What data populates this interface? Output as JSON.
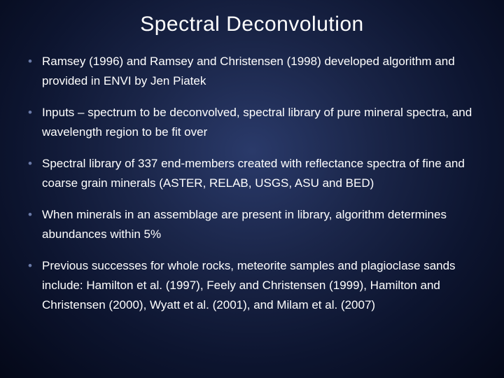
{
  "slide": {
    "title": "Spectral Deconvolution",
    "background": {
      "type": "radial-gradient",
      "center_color": "#2a3a6a",
      "mid_color": "#1a2548",
      "outer_color": "#0d1530",
      "edge_color": "#040818"
    },
    "title_style": {
      "fontsize": 30,
      "color": "#ffffff",
      "align": "center",
      "font_family": "Verdana"
    },
    "bullet_style": {
      "fontsize": 17,
      "color": "#ffffff",
      "marker_color": "#6a7aa8",
      "line_height": 1.65,
      "font_family": "Verdana"
    },
    "bullets": [
      "Ramsey (1996) and Ramsey and Christensen (1998) developed algorithm and provided in ENVI by Jen Piatek",
      "Inputs – spectrum to be deconvolved, spectral library of pure mineral spectra, and wavelength region to be fit over",
      "Spectral library of 337 end-members created with reflectance spectra of fine and coarse grain minerals (ASTER, RELAB, USGS, ASU and BED)",
      "When minerals in an assemblage are present in library, algorithm determines abundances within 5%",
      "Previous successes for whole rocks, meteorite samples and plagioclase sands include: Hamilton et al. (1997), Feely and Christensen (1999), Hamilton and Christensen (2000), Wyatt et al. (2001), and Milam et al. (2007)"
    ]
  }
}
